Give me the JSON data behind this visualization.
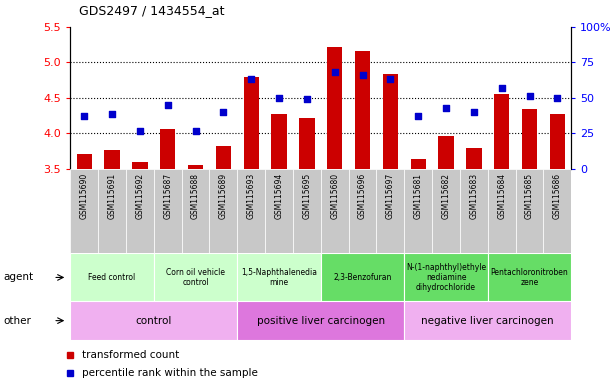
{
  "title": "GDS2497 / 1434554_at",
  "samples": [
    "GSM115690",
    "GSM115691",
    "GSM115692",
    "GSM115687",
    "GSM115688",
    "GSM115689",
    "GSM115693",
    "GSM115694",
    "GSM115695",
    "GSM115680",
    "GSM115696",
    "GSM115697",
    "GSM115681",
    "GSM115682",
    "GSM115683",
    "GSM115684",
    "GSM115685",
    "GSM115686"
  ],
  "bar_values": [
    3.71,
    3.77,
    3.6,
    4.06,
    3.56,
    3.82,
    4.8,
    4.27,
    4.22,
    5.22,
    5.16,
    4.84,
    3.64,
    3.97,
    3.8,
    4.56,
    4.35,
    4.27
  ],
  "dot_percentile": [
    37,
    39,
    27,
    45,
    27,
    40,
    63,
    50,
    49,
    68,
    66,
    63,
    37,
    43,
    40,
    57,
    51,
    50
  ],
  "ylim_left": [
    3.5,
    5.5
  ],
  "ylim_right": [
    0,
    100
  ],
  "yticks_left": [
    3.5,
    4.0,
    4.5,
    5.0,
    5.5
  ],
  "yticks_right": [
    0,
    25,
    50,
    75,
    100
  ],
  "bar_color": "#cc0000",
  "dot_color": "#0000cc",
  "agent_groups": [
    {
      "label": "Feed control",
      "start": 0,
      "end": 3,
      "color": "#ccffcc"
    },
    {
      "label": "Corn oil vehicle\ncontrol",
      "start": 3,
      "end": 6,
      "color": "#ccffcc"
    },
    {
      "label": "1,5-Naphthalenedia\nmine",
      "start": 6,
      "end": 9,
      "color": "#ccffcc"
    },
    {
      "label": "2,3-Benzofuran",
      "start": 9,
      "end": 12,
      "color": "#66dd66"
    },
    {
      "label": "N-(1-naphthyl)ethyle\nnediamine\ndihydrochloride",
      "start": 12,
      "end": 15,
      "color": "#66dd66"
    },
    {
      "label": "Pentachloronitroben\nzene",
      "start": 15,
      "end": 18,
      "color": "#66dd66"
    }
  ],
  "other_groups": [
    {
      "label": "control",
      "start": 0,
      "end": 6,
      "color": "#f0b0f0"
    },
    {
      "label": "positive liver carcinogen",
      "start": 6,
      "end": 12,
      "color": "#dd77dd"
    },
    {
      "label": "negative liver carcinogen",
      "start": 12,
      "end": 18,
      "color": "#f0b0f0"
    }
  ],
  "agent_label": "agent",
  "other_label": "other",
  "legend_bar": "transformed count",
  "legend_dot": "percentile rank within the sample",
  "sample_col_color": "#c8c8c8",
  "chart_bg": "#ffffff"
}
